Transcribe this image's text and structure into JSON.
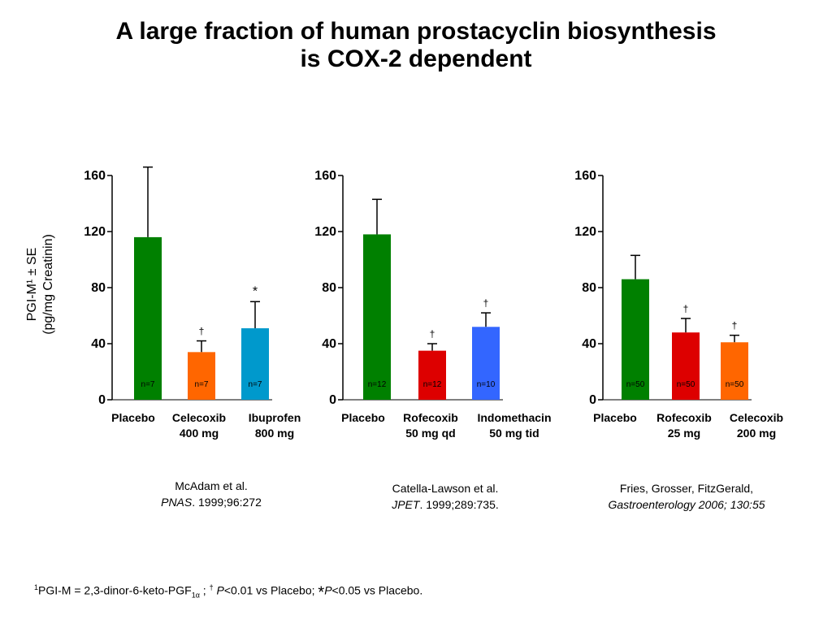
{
  "title": {
    "line1": "A large fraction of human prostacyclin biosynthesis",
    "line2": "is COX-2 dependent"
  },
  "ylabel": {
    "line1": "PGI-M¹ ± SE",
    "line2": "(pg/mg Creatinin)"
  },
  "colors": {
    "green": "#008000",
    "orange": "#ff6600",
    "light_blue": "#0099cc",
    "red": "#dd0000",
    "blue": "#3366ff"
  },
  "chart_data": [
    {
      "type": "bar",
      "ylim": [
        0,
        160
      ],
      "yticks": [
        0,
        40,
        80,
        120,
        160
      ],
      "categories": [
        [
          "Placebo"
        ],
        [
          "Celecoxib",
          "400 mg"
        ],
        [
          "Ibuprofen",
          "800 mg"
        ]
      ],
      "values": [
        116,
        34,
        51
      ],
      "errors": [
        50,
        8,
        19
      ],
      "n_labels": [
        "n=7",
        "n=7",
        "n=7"
      ],
      "markers": [
        "",
        "†",
        "*"
      ],
      "colors": [
        "#008000",
        "#ff6600",
        "#0099cc"
      ],
      "citation": {
        "authors": "McAdam et al.",
        "journal": "PNAS",
        "ref": ". 1999;96:272"
      }
    },
    {
      "type": "bar",
      "ylim": [
        0,
        160
      ],
      "yticks": [
        0,
        40,
        80,
        120,
        160
      ],
      "categories": [
        [
          "Placebo"
        ],
        [
          "Rofecoxib",
          "50 mg qd"
        ],
        [
          "Indomethacin",
          "50 mg tid"
        ]
      ],
      "values": [
        118,
        35,
        52
      ],
      "errors": [
        25,
        5,
        10
      ],
      "n_labels": [
        "n=12",
        "n=12",
        "n=10"
      ],
      "markers": [
        "",
        "†",
        "†"
      ],
      "colors": [
        "#008000",
        "#dd0000",
        "#3366ff"
      ],
      "citation": {
        "authors": "Catella-Lawson et al.",
        "journal": "JPET",
        "ref": ". 1999;289:735."
      }
    },
    {
      "type": "bar",
      "ylim": [
        0,
        160
      ],
      "yticks": [
        0,
        40,
        80,
        120,
        160
      ],
      "categories": [
        [
          "Placebo"
        ],
        [
          "Rofecoxib",
          "25 mg"
        ],
        [
          "Celecoxib",
          "200 mg"
        ]
      ],
      "values": [
        86,
        48,
        41
      ],
      "errors": [
        17,
        10,
        5
      ],
      "n_labels": [
        "n=50",
        "n=50",
        "n=50"
      ],
      "markers": [
        "",
        "†",
        "†"
      ],
      "colors": [
        "#008000",
        "#dd0000",
        "#ff6600"
      ],
      "citation": {
        "authors": "Fries, Grosser, FitzGerald,",
        "journal": "Gastroenterology 2006; 130:55",
        "ref": ""
      }
    }
  ],
  "footnote": {
    "sup1": "1",
    "part1": "PGI-M = 2,3-dinor-6-keto-PGF",
    "sub": "1α",
    "part2": " ; ",
    "dagger": "†",
    "p1": " P",
    "part3": "<0.01 vs Placebo; ",
    "star": "*",
    "p2": "P",
    "part4": "<0.05 vs Placebo."
  }
}
